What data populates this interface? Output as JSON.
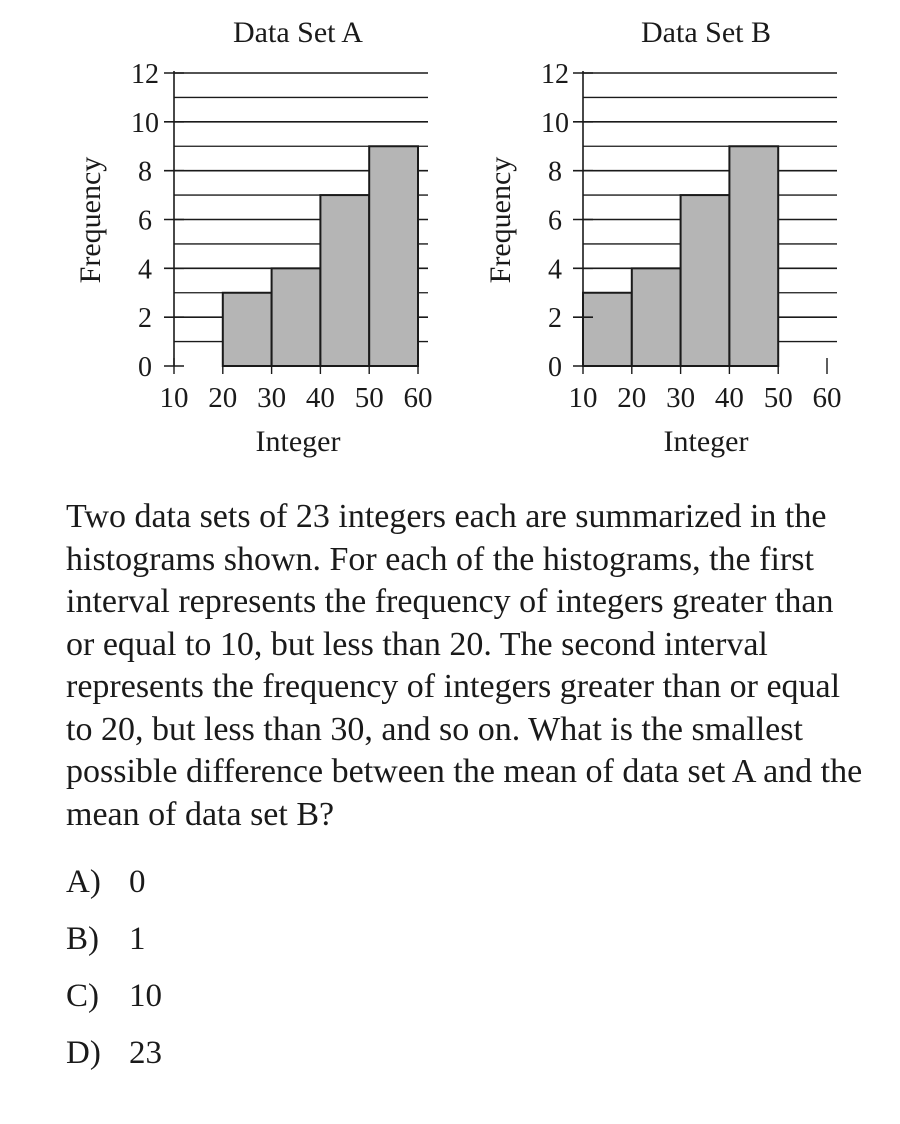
{
  "chart_data": [
    {
      "type": "bar",
      "title": "Data Set A",
      "xlabel": "Integer",
      "ylabel": "Frequency",
      "x_ticks": [
        "10",
        "20",
        "30",
        "40",
        "50",
        "60"
      ],
      "y_ticks": [
        "0",
        "2",
        "4",
        "6",
        "8",
        "10",
        "12"
      ],
      "ylim": [
        0,
        12
      ],
      "bins": [
        [
          10,
          20
        ],
        [
          20,
          30
        ],
        [
          30,
          40
        ],
        [
          40,
          50
        ],
        [
          50,
          60
        ]
      ],
      "values": [
        0,
        3,
        4,
        7,
        9
      ],
      "grid": true,
      "bar_color": "#b5b5b5"
    },
    {
      "type": "bar",
      "title": "Data Set B",
      "xlabel": "Integer",
      "ylabel": "Frequency",
      "x_ticks": [
        "10",
        "20",
        "30",
        "40",
        "50",
        "60"
      ],
      "y_ticks": [
        "0",
        "2",
        "4",
        "6",
        "8",
        "10",
        "12"
      ],
      "ylim": [
        0,
        12
      ],
      "bins": [
        [
          10,
          20
        ],
        [
          20,
          30
        ],
        [
          30,
          40
        ],
        [
          40,
          50
        ],
        [
          50,
          60
        ]
      ],
      "values": [
        3,
        4,
        7,
        9,
        0
      ],
      "grid": true,
      "bar_color": "#b5b5b5"
    }
  ],
  "question": {
    "text": "Two data sets of 23 integers each are summarized in the histograms shown. For each of the histograms, the first interval represents the frequency of integers greater than or equal to 10, but less than 20. The second interval represents the frequency of integers greater than or equal to 20, but less than 30, and so on. What is the smallest possible difference between the mean of data set A and the mean of data set B?"
  },
  "choices": [
    {
      "letter": "A)",
      "value": "0"
    },
    {
      "letter": "B)",
      "value": "1"
    },
    {
      "letter": "C)",
      "value": "10"
    },
    {
      "letter": "D)",
      "value": "23"
    }
  ]
}
